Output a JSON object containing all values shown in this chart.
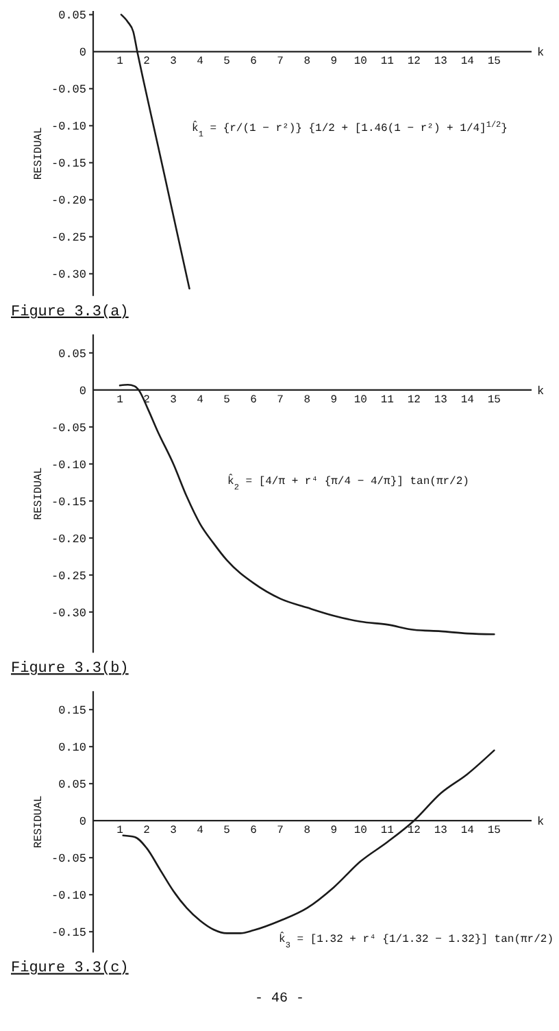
{
  "chart_data": [
    {
      "type": "line",
      "title": "Figure 3.3(a)",
      "xlabel": "k",
      "ylabel": "RESIDUAL",
      "xlim": [
        0,
        16.4
      ],
      "xticks": [
        1,
        2,
        3,
        4,
        5,
        6,
        7,
        8,
        9,
        10,
        11,
        12,
        13,
        14,
        15
      ],
      "ylim": [
        -0.33,
        0.055
      ],
      "yticks": [
        0.05,
        0,
        -0.05,
        {
          "value": -0.1,
          "label": "-0.10"
        },
        -0.15,
        {
          "value": -0.2,
          "label": "-0.20"
        },
        -0.25,
        {
          "value": -0.3,
          "label": "-0.30"
        }
      ],
      "series": [
        {
          "color": "#1a1a1a",
          "x": [
            1.05,
            1.3,
            1.5,
            1.65,
            1.9,
            2.3,
            2.7,
            3.1,
            3.6
          ],
          "values": [
            0.05,
            0.04,
            0.027,
            0,
            -0.042,
            -0.107,
            -0.172,
            -0.238,
            -0.32
          ]
        }
      ],
      "annotations": [
        "k̂$_{1}$ = {r/(1 − r²)} {1/2 + [1.46(1 − r²) + 1/4]$^{1/2}$}"
      ]
    },
    {
      "type": "line",
      "title": "Figure 3.3(b)",
      "xlabel": "k",
      "ylabel": "RESIDUAL",
      "xlim": [
        0,
        16.4
      ],
      "xticks": [
        1,
        2,
        3,
        4,
        5,
        6,
        7,
        8,
        9,
        10,
        11,
        12,
        13,
        14,
        15
      ],
      "ylim": [
        -0.355,
        0.075
      ],
      "yticks": [
        0.05,
        0,
        -0.05,
        {
          "value": -0.1,
          "label": "-0.10"
        },
        -0.15,
        {
          "value": -0.2,
          "label": "-0.20"
        },
        -0.25,
        {
          "value": -0.3,
          "label": "-0.30"
        }
      ],
      "series": [
        {
          "color": "#1a1a1a",
          "x": [
            1,
            1.3,
            1.55,
            1.7,
            2.05,
            2.4,
            3,
            3.5,
            4,
            4.5,
            5,
            6,
            7,
            8,
            9,
            10,
            11,
            12,
            13,
            14,
            15
          ],
          "values": [
            0.006,
            0.007,
            0.005,
            0,
            -0.026,
            -0.055,
            -0.1,
            -0.144,
            -0.181,
            -0.207,
            -0.23,
            -0.261,
            -0.282,
            -0.294,
            -0.305,
            -0.313,
            -0.317,
            -0.324,
            -0.326,
            -0.329,
            -0.33
          ]
        }
      ],
      "annotations": [
        "k̂$_{2}$ = [4/π + r⁴ {π/4 − 4/π}] tan(πr/2)"
      ]
    },
    {
      "type": "line",
      "title": "Figure 3.3(c)",
      "xlabel": "k",
      "ylabel": "RESIDUAL",
      "xlim": [
        0,
        16.4
      ],
      "xticks": [
        1,
        2,
        3,
        4,
        5,
        6,
        7,
        8,
        9,
        10,
        11,
        12,
        13,
        14,
        15
      ],
      "ylim": [
        -0.178,
        0.175
      ],
      "yticks": [
        0.15,
        {
          "value": 0.1,
          "label": "0.10"
        },
        0.05,
        0,
        -0.05,
        {
          "value": -0.1,
          "label": "-0.10"
        },
        -0.15
      ],
      "series": [
        {
          "color": "#1a1a1a",
          "x": [
            1.12,
            1.55,
            2,
            2.5,
            3,
            3.5,
            4,
            4.5,
            5,
            5.5,
            6,
            7,
            8,
            9,
            10,
            11,
            12,
            13,
            14,
            15
          ],
          "values": [
            -0.02,
            -0.022,
            -0.037,
            -0.066,
            -0.095,
            -0.118,
            -0.135,
            -0.147,
            -0.152,
            -0.152,
            -0.148,
            -0.135,
            -0.118,
            -0.09,
            -0.055,
            -0.029,
            0,
            0.037,
            0.063,
            0.095
          ]
        }
      ],
      "annotations": [
        "k̂$_{3}$ = [1.32 + r⁴ {1/1.32 − 1.32}] tan(πr/2)",
        "- 46 -"
      ]
    }
  ]
}
